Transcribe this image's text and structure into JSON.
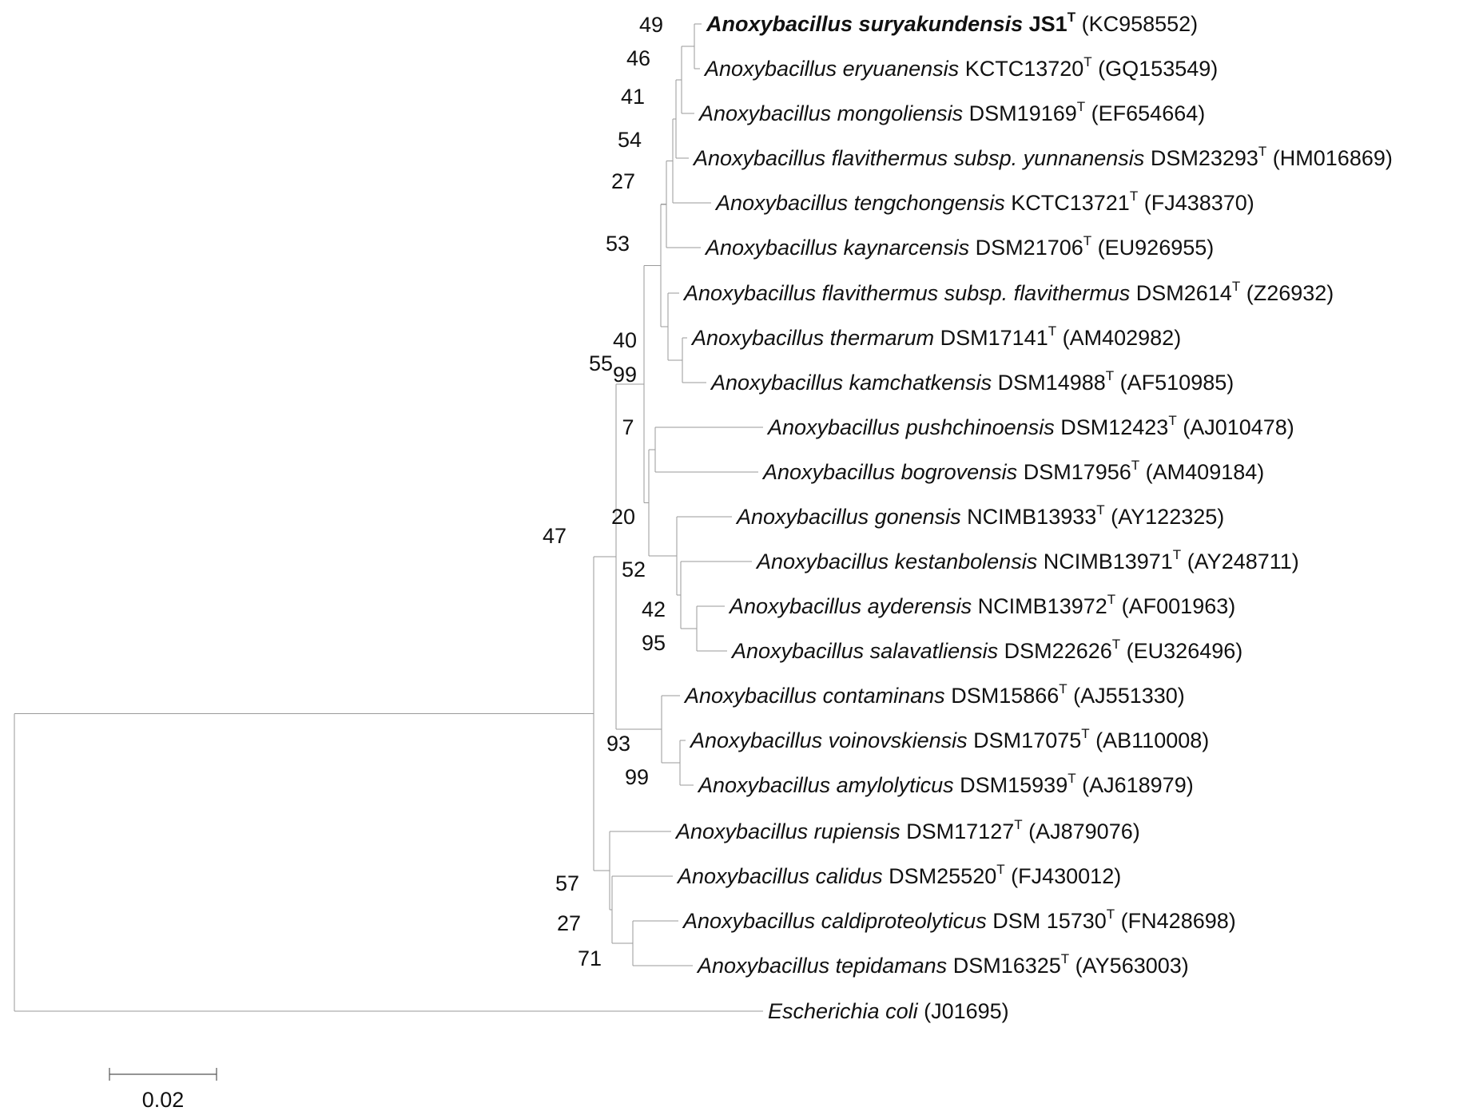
{
  "taxa": [
    {
      "id": "sury",
      "species": "Anoxybacillus suryakundensis",
      "strain": "JS1",
      "type": "T",
      "acc": "(KC958552)",
      "highlight": true
    },
    {
      "id": "eryu",
      "species": "Anoxybacillus eryuanensis",
      "strain": "KCTC13720",
      "type": "T",
      "acc": "(GQ153549)"
    },
    {
      "id": "mong",
      "species": "Anoxybacillus mongoliensis",
      "strain": "DSM19169",
      "type": "T",
      "acc": "(EF654664)"
    },
    {
      "id": "yunn",
      "species": "Anoxybacillus flavithermus subsp. yunnanensis",
      "strain": "DSM23293",
      "type": "T",
      "acc": "(HM016869)"
    },
    {
      "id": "teng",
      "species": "Anoxybacillus tengchongensis",
      "strain": "KCTC13721",
      "type": "T",
      "acc": "(FJ438370)"
    },
    {
      "id": "kayn",
      "species": "Anoxybacillus kaynarcensis",
      "strain": "DSM21706",
      "type": "T",
      "acc": "(EU926955)"
    },
    {
      "id": "flav",
      "species": "Anoxybacillus flavithermus subsp. flavithermus",
      "strain": "DSM2614",
      "type": "T",
      "acc": "(Z26932)"
    },
    {
      "id": "ther",
      "species": "Anoxybacillus thermarum",
      "strain": "DSM17141",
      "type": "T",
      "acc": "(AM402982)"
    },
    {
      "id": "kamc",
      "species": "Anoxybacillus kamchatkensis",
      "strain": "DSM14988",
      "type": "T",
      "acc": "(AF510985)"
    },
    {
      "id": "push",
      "species": "Anoxybacillus pushchinoensis",
      "strain": "DSM12423",
      "type": "T",
      "acc": "(AJ010478)"
    },
    {
      "id": "bogr",
      "species": "Anoxybacillus bogrovensis",
      "strain": "DSM17956",
      "type": "T",
      "acc": "(AM409184)"
    },
    {
      "id": "gone",
      "species": "Anoxybacillus gonensis",
      "strain": "NCIMB13933",
      "type": "T",
      "acc": "(AY122325)"
    },
    {
      "id": "kest",
      "species": "Anoxybacillus kestanbolensis",
      "strain": "NCIMB13971",
      "type": "T",
      "acc": "(AY248711)"
    },
    {
      "id": "ayde",
      "species": "Anoxybacillus ayderensis",
      "strain": "NCIMB13972",
      "type": "T",
      "acc": "(AF001963)"
    },
    {
      "id": "sala",
      "species": "Anoxybacillus salavatliensis",
      "strain": "DSM22626",
      "type": "T",
      "acc": "(EU326496)"
    },
    {
      "id": "cont",
      "species": "Anoxybacillus contaminans",
      "strain": "DSM15866",
      "type": "T",
      "acc": "(AJ551330)"
    },
    {
      "id": "voin",
      "species": "Anoxybacillus voinovskiensis",
      "strain": "DSM17075",
      "type": "T",
      "acc": "(AB110008)"
    },
    {
      "id": "amyl",
      "species": "Anoxybacillus amylolyticus",
      "strain": "DSM15939",
      "type": "T",
      "acc": "(AJ618979)"
    },
    {
      "id": "rupi",
      "species": "Anoxybacillus rupiensis",
      "strain": "DSM17127",
      "type": "T",
      "acc": "(AJ879076)"
    },
    {
      "id": "cali",
      "species": "Anoxybacillus calidus",
      "strain": "DSM25520",
      "type": "T",
      "acc": "(FJ430012)"
    },
    {
      "id": "cald",
      "species": "Anoxybacillus caldiproteolyticus",
      "strain": "DSM 15730",
      "type": "T",
      "acc": "(FN428698)"
    },
    {
      "id": "tepi",
      "species": "Anoxybacillus tepidamans",
      "strain": "DSM16325",
      "type": "T",
      "acc": "(AY563003)"
    },
    {
      "id": "ecol",
      "species": "Escherichia coli",
      "strain": "",
      "type": "",
      "acc": "(J01695)"
    }
  ],
  "bootstrap": {
    "n_sury_eryu": "49",
    "n_mong": "46",
    "n_yunn": "41",
    "n_teng": "54",
    "n_kayn": "27",
    "n_core": "53",
    "n_flav_grp": "40",
    "n_ther_kamc": "99",
    "n_push_bogr": "7",
    "n_gone_grp": "20",
    "n_kest_grp": "52",
    "n_ayde_sala": "95",
    "n_ayde_grp": "42",
    "n_main": "55",
    "n_cont_grp": "93",
    "n_voin_amyl": "99",
    "n_ingroup": "47",
    "n_rupi_grp": "57",
    "n_cali_grp": "27",
    "n_cald_tepi": "71"
  },
  "scale_bar": {
    "label": "0.02"
  }
}
